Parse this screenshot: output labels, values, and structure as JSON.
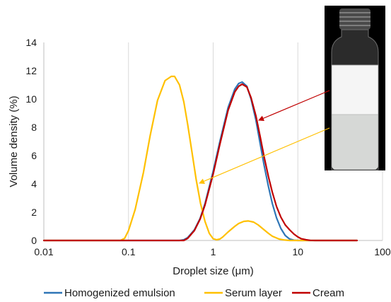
{
  "chart_data": {
    "type": "line",
    "xlabel": "Droplet size (μm)",
    "ylabel": "Volume density (%)",
    "x_scale": "log",
    "xlim": [
      0.01,
      100
    ],
    "ylim": [
      0,
      14
    ],
    "x_ticks": [
      0.01,
      0.1,
      1,
      10,
      100
    ],
    "x_tick_labels": [
      "0.01",
      "0.1",
      "1",
      "10",
      "100"
    ],
    "y_ticks": [
      0,
      2,
      4,
      6,
      8,
      10,
      12,
      14
    ],
    "y_tick_labels": [
      "0",
      "2",
      "4",
      "6",
      "8",
      "10",
      "12",
      "14"
    ],
    "grid": "vertical",
    "legend_position": "bottom",
    "series": [
      {
        "name": "Homogenized emulsion",
        "color": "#2e75b6",
        "x": [
          0.01,
          0.4,
          0.45,
          0.5,
          0.6,
          0.7,
          0.8,
          1.0,
          1.2,
          1.5,
          1.8,
          2.0,
          2.2,
          2.5,
          2.8,
          3.2,
          3.6,
          4.0,
          4.5,
          5.0,
          5.6,
          6.3,
          7.1,
          8.0,
          9.0,
          10.0,
          50.0
        ],
        "y": [
          0,
          0,
          0.05,
          0.2,
          0.75,
          1.55,
          2.6,
          4.9,
          7.0,
          9.4,
          10.7,
          11.1,
          11.2,
          10.9,
          10.0,
          8.5,
          6.8,
          5.3,
          3.8,
          2.6,
          1.6,
          0.85,
          0.35,
          0.1,
          0.02,
          0,
          0
        ]
      },
      {
        "name": "Serum layer",
        "color": "#ffc000",
        "x": [
          0.01,
          0.08,
          0.09,
          0.1,
          0.12,
          0.15,
          0.18,
          0.22,
          0.27,
          0.32,
          0.35,
          0.4,
          0.45,
          0.5,
          0.56,
          0.63,
          0.71,
          0.8,
          0.9,
          1.0,
          1.1,
          1.2,
          1.3,
          1.5,
          1.8,
          2.0,
          2.3,
          2.6,
          3.0,
          3.4,
          4.0,
          4.5,
          5.0,
          6.0,
          7.0,
          8.0,
          10.0,
          15.0,
          50.0
        ],
        "y": [
          0,
          0,
          0.15,
          0.7,
          2.2,
          4.8,
          7.4,
          9.9,
          11.3,
          11.6,
          11.6,
          11.0,
          9.8,
          8.2,
          6.3,
          4.3,
          2.6,
          1.35,
          0.5,
          0.12,
          0.05,
          0.1,
          0.25,
          0.6,
          1.0,
          1.2,
          1.35,
          1.38,
          1.3,
          1.1,
          0.75,
          0.5,
          0.3,
          0.1,
          0.03,
          0,
          0,
          0,
          0
        ]
      },
      {
        "name": "Cream",
        "color": "#c00000",
        "x": [
          0.01,
          0.45,
          0.5,
          0.6,
          0.7,
          0.8,
          1.0,
          1.2,
          1.5,
          1.8,
          2.0,
          2.2,
          2.5,
          2.8,
          3.2,
          3.6,
          4.0,
          4.5,
          5.0,
          5.6,
          6.3,
          7.1,
          8.0,
          9.0,
          10.0,
          11.0,
          12.5,
          14.0,
          16.0,
          50.0
        ],
        "y": [
          0,
          0,
          0.15,
          0.7,
          1.5,
          2.5,
          4.7,
          6.8,
          9.2,
          10.5,
          10.9,
          11.05,
          10.85,
          10.1,
          8.8,
          7.3,
          5.9,
          4.5,
          3.4,
          2.4,
          1.65,
          1.1,
          0.75,
          0.45,
          0.25,
          0.12,
          0.05,
          0.01,
          0,
          0
        ]
      }
    ],
    "annotations": [
      {
        "type": "arrow",
        "color": "#c00000",
        "from_target": "cream layer in vial",
        "to_target": "Cream curve",
        "to_point": [
          2.5,
          8.6
        ]
      },
      {
        "type": "arrow",
        "color": "#ffc000",
        "from_target": "serum layer in vial",
        "to_target": "Serum layer curve",
        "to_point": [
          0.66,
          4.0
        ]
      }
    ]
  },
  "inset_photo": {
    "subject": "glass vial with white cream layer above a greyish serum layer",
    "background": "#000000",
    "cream_color": "#f5f5f5",
    "serum_color": "#d6d8d6"
  }
}
